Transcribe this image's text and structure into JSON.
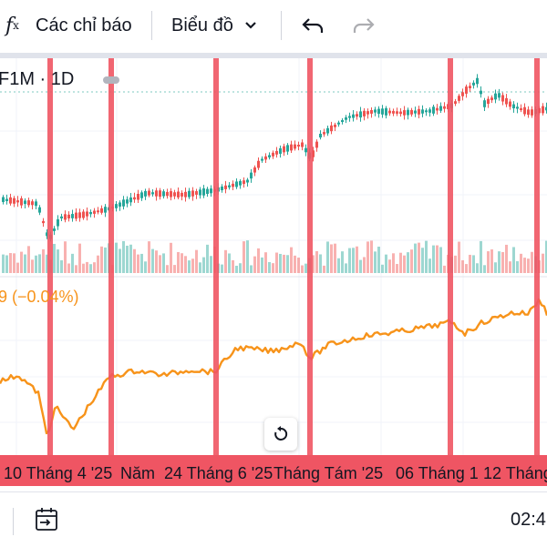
{
  "toolbar": {
    "fx_symbol": "f",
    "fx_sub": "x",
    "indicators_label": "Các chỉ báo",
    "chart_type_label": "Biểu đồ",
    "icons": [
      "function-icon",
      "chevron-down-icon",
      "undo-icon",
      "redo-icon"
    ]
  },
  "symbol": {
    "label": "F1M · 1D"
  },
  "indicator": {
    "change_text": "9 (−0.04%)",
    "color": "#f7931a"
  },
  "colors": {
    "up": "#26a69a",
    "down": "#ef5350",
    "highlight": "#ef5563",
    "line": "#f7931a"
  },
  "xaxis": {
    "labels": [
      "10 Tháng 4 '25",
      "Năm",
      "24 Tháng 6 '25",
      "Tháng Tám '25",
      "06 Tháng 1",
      "12 Tháng"
    ]
  },
  "bottom": {
    "time": "02:4",
    "icons": [
      "calendar-range-icon"
    ]
  }
}
